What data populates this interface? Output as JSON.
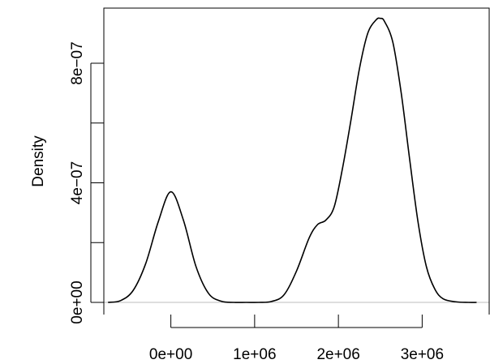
{
  "chart_data": {
    "type": "line",
    "title": "",
    "xlabel": "",
    "ylabel": "Density",
    "xlim": [
      -800000,
      3800000
    ],
    "ylim": [
      0,
      9.8e-07
    ],
    "grid": false,
    "legend": "none",
    "baseline": {
      "y": 0,
      "color": "#bebebe"
    },
    "x_ticks": [
      {
        "value": 0,
        "label": "0e+00"
      },
      {
        "value": 1000000,
        "label": "1e+06"
      },
      {
        "value": 2000000,
        "label": "2e+06"
      },
      {
        "value": 3000000,
        "label": "3e+06"
      }
    ],
    "y_ticks": [
      {
        "value": 0,
        "label": "0e+00"
      },
      {
        "value": 2e-07,
        "label": ""
      },
      {
        "value": 4e-07,
        "label": "4e−07"
      },
      {
        "value": 6e-07,
        "label": ""
      },
      {
        "value": 8e-07,
        "label": "8e−07"
      }
    ],
    "series": [
      {
        "color": "#000000",
        "x": [
          -750000,
          -600000,
          -450000,
          -300000,
          -150000,
          0,
          150000,
          300000,
          450000,
          600000,
          750000,
          900000,
          1050000,
          1200000,
          1350000,
          1500000,
          1650000,
          1750000,
          1850000,
          1950000,
          2050000,
          2150000,
          2250000,
          2350000,
          2450000,
          2500000,
          2550000,
          2650000,
          2750000,
          2850000,
          2950000,
          3050000,
          3150000,
          3250000,
          3400000,
          3550000,
          3650000
        ],
        "y": [
          0.0,
          6e-09,
          4e-08,
          1.3e-07,
          2.7e-07,
          3.7e-07,
          2.75e-07,
          1.2e-07,
          3e-08,
          4e-09,
          0.0,
          0.0,
          0.0,
          3e-09,
          2.5e-08,
          1.05e-07,
          2.15e-07,
          2.6e-07,
          2.75e-07,
          3.2e-07,
          4.5e-07,
          6.1e-07,
          7.8e-07,
          9e-07,
          9.45e-07,
          9.5e-07,
          9.4e-07,
          8.7e-07,
          7e-07,
          4.8e-07,
          2.7e-07,
          1.2e-07,
          4.5e-08,
          1.2e-08,
          2e-09,
          0.0,
          0.0
        ]
      }
    ]
  }
}
